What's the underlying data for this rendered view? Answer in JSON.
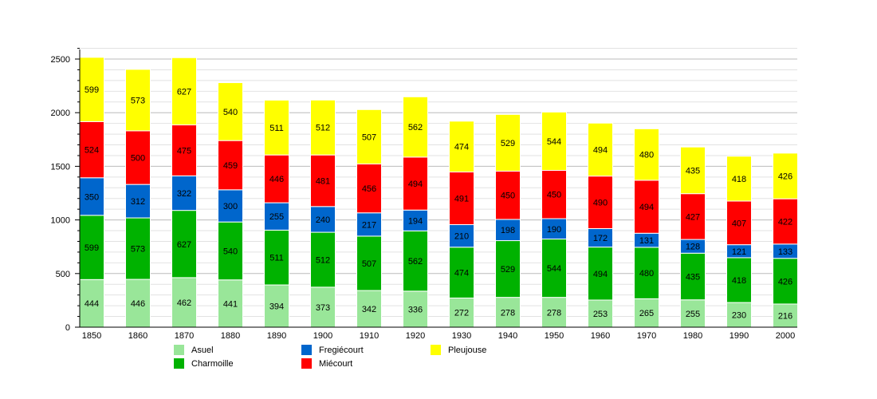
{
  "chart_data": {
    "type": "bar",
    "stacked": true,
    "title": "",
    "xlabel": "",
    "ylabel": "",
    "ylim": [
      0,
      2500
    ],
    "yticks": [
      0,
      500,
      1000,
      1500,
      2000,
      2500
    ],
    "grid": true,
    "legend_position": "bottom",
    "categories": [
      "1850",
      "1860",
      "1870",
      "1880",
      "1890",
      "1900",
      "1910",
      "1920",
      "1930",
      "1940",
      "1950",
      "1960",
      "1970",
      "1980",
      "1990",
      "2000"
    ],
    "series": [
      {
        "name": "Asuel",
        "color": "#99e699",
        "values": [
          444,
          446,
          462,
          441,
          394,
          373,
          342,
          336,
          272,
          278,
          278,
          253,
          265,
          255,
          230,
          216
        ]
      },
      {
        "name": "Charmoille",
        "color": "#00b200",
        "values": [
          599,
          573,
          627,
          540,
          511,
          512,
          507,
          562,
          474,
          529,
          544,
          494,
          480,
          435,
          418,
          426
        ]
      },
      {
        "name": "Fregiécourt",
        "color": "#0066cc",
        "values": [
          350,
          312,
          322,
          300,
          255,
          240,
          217,
          194,
          210,
          198,
          190,
          172,
          131,
          128,
          121,
          133
        ]
      },
      {
        "name": "Miécourt",
        "color": "#ff0000",
        "values": [
          524,
          500,
          475,
          459,
          446,
          481,
          456,
          494,
          491,
          450,
          450,
          490,
          494,
          427,
          407,
          422
        ]
      },
      {
        "name": "Pleujouse",
        "color": "#ffff00",
        "values": [
          599,
          573,
          627,
          540,
          511,
          512,
          507,
          562,
          474,
          529,
          544,
          494,
          480,
          435,
          418,
          426
        ]
      }
    ]
  }
}
